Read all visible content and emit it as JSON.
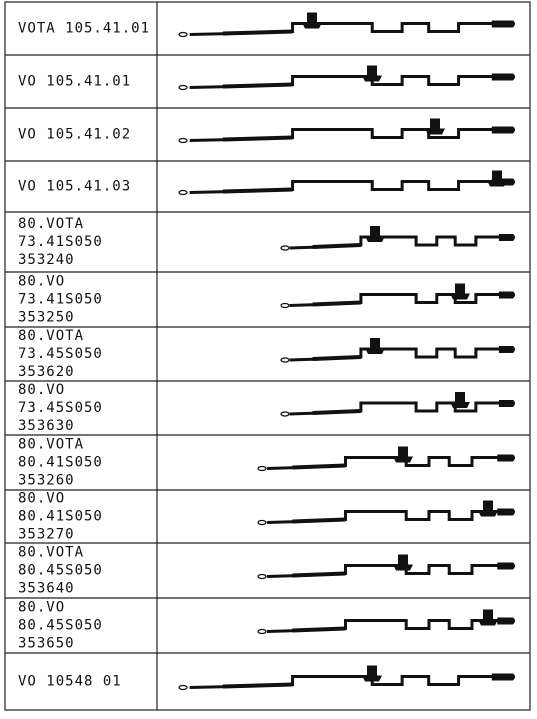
{
  "rows": [
    {
      "label": [
        "VOTA 105.41.01"
      ]
    },
    {
      "label": [
        "VO  105.41.01"
      ]
    },
    {
      "label": [
        "VO  105.41.02"
      ]
    },
    {
      "label": [
        "VO  105.41.03"
      ]
    },
    {
      "label": [
        "80.VOTA",
        "73.41S050",
        "353240"
      ]
    },
    {
      "label": [
        "80.VO",
        "73.41S050",
        "353250"
      ]
    },
    {
      "label": [
        "80.VOTA",
        "73.45S050",
        "353620"
      ]
    },
    {
      "label": [
        "80.VO",
        "73.45S050",
        "353630"
      ]
    },
    {
      "label": [
        "80.VOTA",
        "80.41S050",
        "353260"
      ]
    },
    {
      "label": [
        "80.VO",
        "80.41S050",
        "353270"
      ]
    },
    {
      "label": [
        "80.VOTA",
        "80.45S050",
        "353640"
      ]
    },
    {
      "label": [
        "80.VO",
        "80.45S050",
        "353650"
      ]
    },
    {
      "label": [
        "VO 10548 01"
      ]
    }
  ]
}
